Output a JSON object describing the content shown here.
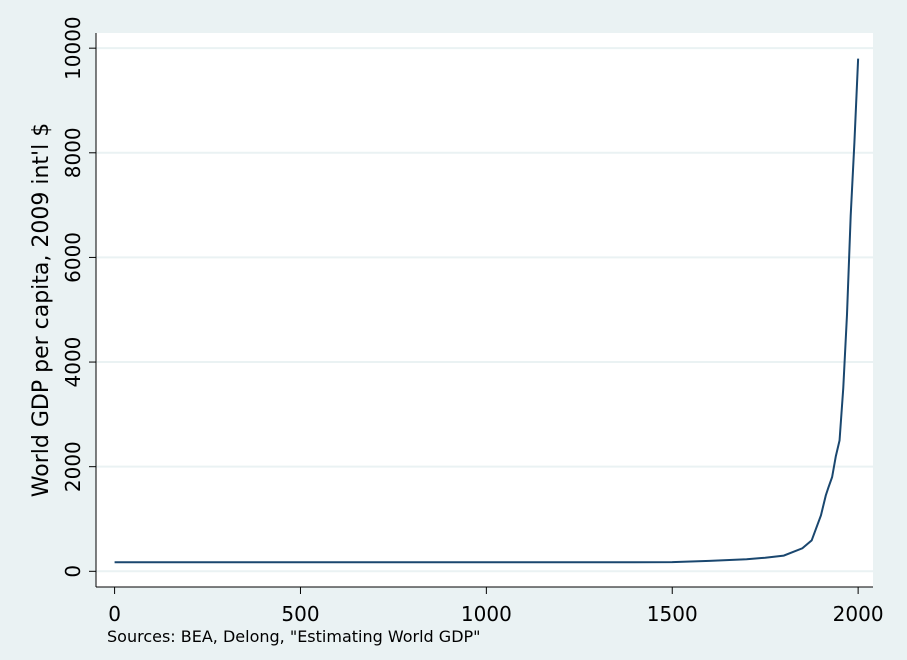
{
  "chart_data": {
    "type": "line",
    "y_label": "World GDP per capita, 2009 int'l $",
    "note": "Sources: BEA, Delong, \"Estimating World GDP\"",
    "x": [
      0,
      100,
      200,
      300,
      400,
      500,
      600,
      700,
      800,
      900,
      1000,
      1100,
      1200,
      1300,
      1400,
      1500,
      1600,
      1700,
      1750,
      1800,
      1850,
      1875,
      1900,
      1913,
      1920,
      1930,
      1940,
      1950,
      1960,
      1970,
      1980,
      1990,
      2000
    ],
    "series": [
      {
        "name": "World GDP per capita",
        "color": "#1a476f",
        "values": [
          172,
          172,
          172,
          172,
          172,
          172,
          172,
          172,
          172,
          172,
          172,
          172,
          172,
          172,
          172,
          175,
          200,
          230,
          260,
          300,
          440,
          590,
          1070,
          1450,
          1600,
          1800,
          2200,
          2500,
          3500,
          4900,
          6800,
          8200,
          9800
        ]
      }
    ],
    "xlim": [
      -50,
      2040
    ],
    "ylim": [
      -300,
      10290
    ],
    "xticks": [
      0,
      500,
      1000,
      1500,
      2000
    ],
    "yticks": [
      0,
      2000,
      4000,
      6000,
      8000,
      10000
    ],
    "grid": true
  }
}
